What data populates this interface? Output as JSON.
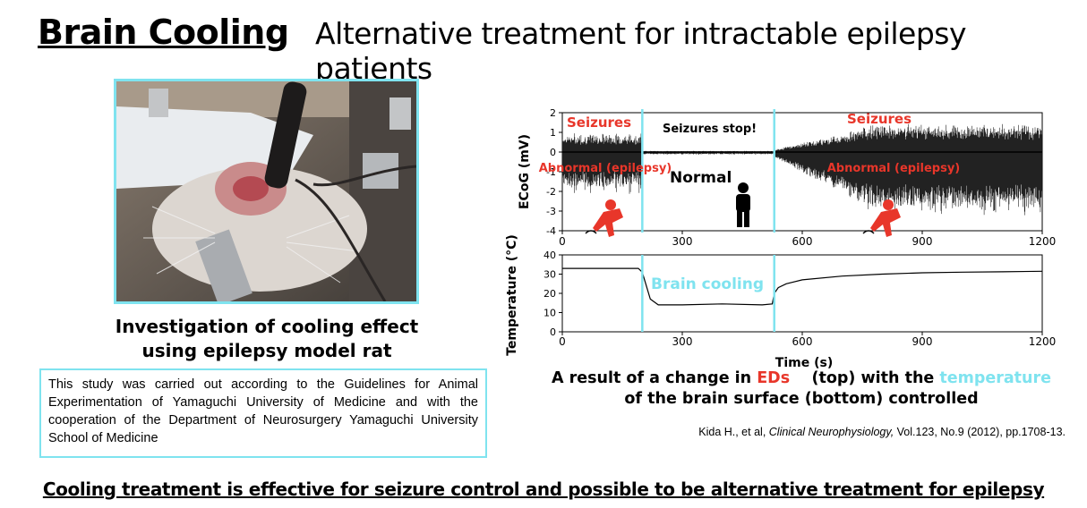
{
  "header": {
    "title": "Brain Cooling",
    "subtitle": "Alternative treatment for intractable epilepsy patients"
  },
  "photo": {
    "caption_line1": "Investigation of cooling effect",
    "caption_line2": "using epilepsy model rat"
  },
  "study_note": "This study was carried out according to the Guidelines for Animal Experimentation of Yamaguchi University of Medicine and with the cooperation of the Department of Neurosurgery Yamaguchi University School of Medicine",
  "result_caption": {
    "part1": "A result of a change in ",
    "eds": "EDs",
    "part2": "(top) with the ",
    "temperature": "temperature",
    "line2": "of the brain surface (bottom) controlled"
  },
  "citation": {
    "authors": "Kida H., et al, ",
    "journal": "Clinical Neurophysiology,",
    "details": " Vol.123, No.9 (2012), pp.1708-13."
  },
  "conclusion": "Cooling treatment is effective for seizure control and possible to be alternative treatment for epilepsy",
  "colors": {
    "accent_cyan": "#7fe3ef",
    "seizure_red": "#e8362a"
  },
  "chart_data": [
    {
      "type": "line",
      "ylabel": "ECoG (mV)",
      "xlim": [
        0,
        1200
      ],
      "ylim": [
        -4,
        2
      ],
      "xticks": [
        0,
        300,
        600,
        900,
        1200
      ],
      "yticks": [
        -4,
        -3,
        -2,
        -1,
        0,
        1,
        2
      ],
      "cooling_start": 200,
      "cooling_end": 530,
      "annotations": {
        "seizures_left": "Seizures",
        "seizures_stop": "Seizures stop!",
        "seizures_right": "Seizures",
        "abnormal_left": "Abnormal (epilepsy)",
        "abnormal_right": "Abnormal (epilepsy)",
        "normal": "Normal"
      }
    },
    {
      "type": "line",
      "xlabel": "Time (s)",
      "ylabel": "Temperature (°C)",
      "xlim": [
        0,
        1200
      ],
      "ylim": [
        0,
        40
      ],
      "xticks": [
        0,
        300,
        600,
        900,
        1200
      ],
      "yticks": [
        0,
        10,
        20,
        30,
        40
      ],
      "annotation": "Brain cooling",
      "series": [
        {
          "x": [
            0,
            190,
            200,
            210,
            220,
            240,
            300,
            400,
            500,
            525,
            530,
            540,
            560,
            600,
            700,
            800,
            900,
            1000,
            1100,
            1200
          ],
          "y": [
            33,
            33,
            31,
            24,
            17,
            14,
            14,
            14.5,
            14,
            14.5,
            20,
            23,
            25,
            27,
            29,
            30,
            30.7,
            31,
            31.2,
            31.5
          ]
        }
      ]
    }
  ]
}
